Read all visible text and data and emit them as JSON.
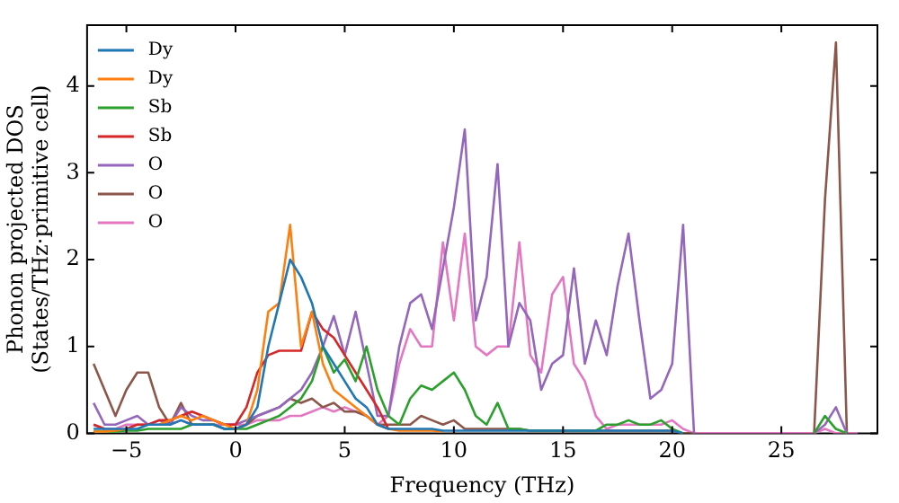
{
  "chart_data": {
    "type": "line",
    "xlabel": "Frequency (THz)",
    "ylabel": "Phonon projected DOS\n(States/THz·primitive cell)",
    "xlim": [
      -6.8,
      29.4
    ],
    "ylim": [
      0,
      4.7
    ],
    "xticks": [
      -5,
      0,
      5,
      10,
      15,
      20,
      25
    ],
    "yticks": [
      0,
      1,
      2,
      3,
      4
    ],
    "legend": "top left",
    "grid": false,
    "marker": "none",
    "line_style": "solid",
    "x": [
      -6.5,
      -6,
      -5.5,
      -5,
      -4.5,
      -4,
      -3.5,
      -3,
      -2.5,
      -2,
      -1.5,
      -1,
      -0.5,
      0,
      0.5,
      1,
      1.5,
      2,
      2.5,
      3,
      3.5,
      4,
      4.5,
      5,
      5.5,
      6,
      6.5,
      7,
      7.5,
      8,
      8.5,
      9,
      9.5,
      10,
      10.5,
      11,
      11.5,
      12,
      12.5,
      13,
      13.5,
      14,
      14.5,
      15,
      15.5,
      16,
      16.5,
      17,
      17.5,
      18,
      18.5,
      19,
      19.5,
      20,
      20.5,
      21,
      21.5,
      22,
      22.5,
      23,
      23.5,
      24,
      24.5,
      25,
      25.5,
      26,
      26.5,
      27,
      27.5,
      28,
      28.5
    ],
    "series": [
      {
        "name": "Dy",
        "color": "#1f77b4",
        "values": [
          0.05,
          0.05,
          0.05,
          0.05,
          0.05,
          0.1,
          0.1,
          0.1,
          0.15,
          0.1,
          0.1,
          0.1,
          0.05,
          0.05,
          0.1,
          0.3,
          1.0,
          1.5,
          2.0,
          1.8,
          1.5,
          1.0,
          0.8,
          0.6,
          0.4,
          0.3,
          0.1,
          0.05,
          0.05,
          0.05,
          0.05,
          0.05,
          0.03,
          0.03,
          0.03,
          0.03,
          0.03,
          0.03,
          0.03,
          0.03,
          0.03,
          0.03,
          0.03,
          0.03,
          0.03,
          0.03,
          0.03,
          0.03,
          0.03,
          0.03,
          0.03,
          0.03,
          0.03,
          0.03,
          0,
          null,
          null,
          null,
          null,
          null,
          null,
          null,
          null,
          null,
          null,
          null,
          null,
          null,
          null,
          null,
          null
        ]
      },
      {
        "name": "Dy",
        "color": "#ff7f0e",
        "values": [
          0.02,
          0.02,
          0.03,
          0.05,
          null,
          null,
          0.1,
          0.15,
          0.2,
          0.15,
          0.2,
          0.15,
          0.1,
          0.05,
          0.1,
          0.5,
          1.4,
          1.5,
          2.4,
          1.0,
          1.4,
          0.8,
          0.5,
          0.4,
          0.3,
          0.2,
          0.1,
          0.05,
          0.03,
          0.03,
          0.03,
          0.03,
          0.02,
          null,
          null,
          null,
          null,
          null,
          null,
          null,
          null,
          null,
          null,
          null,
          null,
          null,
          null,
          null,
          null,
          null,
          null,
          null,
          null,
          null,
          null,
          null,
          null,
          null,
          null,
          null,
          null,
          null,
          null,
          null,
          null,
          null,
          null,
          null,
          null,
          null,
          null
        ]
      },
      {
        "name": "Sb",
        "color": "#2ca02c",
        "values": [
          0.02,
          0.02,
          0.02,
          0.03,
          0.03,
          0.05,
          0.05,
          0.05,
          0.05,
          0.1,
          0.1,
          0.1,
          0.05,
          0.05,
          0.05,
          0.1,
          0.15,
          0.2,
          0.3,
          0.4,
          0.6,
          1.0,
          0.7,
          0.85,
          0.6,
          1.0,
          0.5,
          0.2,
          0.1,
          0.4,
          0.55,
          0.5,
          0.6,
          0.7,
          0.5,
          0.2,
          0.1,
          0.35,
          0.05,
          0.05,
          0.03,
          0.03,
          0.03,
          0.03,
          0.03,
          0.03,
          0.03,
          0.1,
          0.1,
          0.15,
          0.1,
          0.1,
          0.15,
          0.05,
          0,
          null,
          null,
          null,
          null,
          null,
          null,
          null,
          null,
          null,
          null,
          null,
          0,
          0.2,
          0.05,
          0,
          null
        ]
      },
      {
        "name": "Sb",
        "color": "#d62728",
        "values": [
          0.1,
          0.05,
          null,
          0.05,
          0.1,
          0.1,
          0.15,
          0.15,
          0.2,
          0.25,
          0.2,
          0.15,
          0.1,
          0.1,
          0.3,
          0.7,
          0.9,
          0.95,
          0.95,
          0.95,
          1.4,
          1.2,
          1.1,
          0.9,
          0.7,
          0.5,
          0.3,
          0.05,
          null,
          null,
          null,
          null,
          null,
          null,
          null,
          null,
          null,
          null,
          null,
          null,
          null,
          null,
          null,
          null,
          null,
          null,
          null,
          null,
          null,
          null,
          null,
          null,
          null,
          null,
          null,
          null,
          null,
          null,
          null,
          null,
          null,
          null,
          null,
          null,
          null,
          null,
          null,
          null,
          null,
          null,
          null
        ]
      },
      {
        "name": "O",
        "color": "#9467bd",
        "values": [
          0.35,
          0.1,
          0.1,
          0.15,
          0.2,
          0.1,
          0.15,
          0.1,
          0.3,
          0.2,
          0.15,
          0.15,
          0.1,
          0.1,
          0.15,
          0.2,
          0.25,
          0.3,
          0.4,
          0.5,
          0.7,
          1.0,
          1.35,
          0.9,
          1.4,
          0.8,
          0.2,
          0.2,
          1.0,
          1.5,
          1.6,
          1.2,
          1.9,
          2.6,
          3.5,
          1.3,
          1.8,
          3.1,
          1.0,
          1.5,
          1.3,
          0.5,
          0.8,
          0.9,
          1.9,
          0.8,
          1.3,
          0.9,
          1.7,
          2.3,
          1.3,
          0.4,
          0.5,
          0.8,
          2.4,
          0,
          null,
          null,
          null,
          null,
          null,
          null,
          null,
          null,
          null,
          null,
          0,
          0.1,
          0.3,
          0,
          null
        ]
      },
      {
        "name": "O",
        "color": "#8c564b",
        "values": [
          0.8,
          0.5,
          0.2,
          0.5,
          0.7,
          0.7,
          0.3,
          0.1,
          0.35,
          0.1,
          0.1,
          0.1,
          0.05,
          0.05,
          0.1,
          0.2,
          0.25,
          0.3,
          0.4,
          0.35,
          0.4,
          0.3,
          0.35,
          0.25,
          0.25,
          0.2,
          0.1,
          0.1,
          0.1,
          0.1,
          0.2,
          0.15,
          0.1,
          0.15,
          0.05,
          0.05,
          0.05,
          0.05,
          0.05,
          0.05,
          0.03,
          0.03,
          0.03,
          0.03,
          0.03,
          0.03,
          0.03,
          0.03,
          0.03,
          0.03,
          0.03,
          0.03,
          0.03,
          0.03,
          0,
          0,
          null,
          null,
          null,
          null,
          null,
          null,
          null,
          null,
          null,
          null,
          0,
          2.7,
          4.5,
          0,
          null
        ]
      },
      {
        "name": "O",
        "color": "#e377c2",
        "values": [
          0.1,
          0.05,
          0.05,
          0.1,
          0.1,
          0.1,
          0.1,
          0.1,
          0.15,
          0.1,
          0.1,
          0.1,
          0.1,
          0.1,
          0.1,
          0.15,
          0.15,
          0.15,
          0.2,
          0.2,
          0.25,
          0.3,
          0.25,
          0.3,
          0.25,
          0.2,
          0.1,
          0.2,
          0.8,
          1.2,
          1.0,
          1.0,
          2.2,
          1.3,
          2.3,
          1.0,
          0.9,
          1.0,
          1.0,
          2.2,
          0.9,
          0.7,
          1.6,
          1.8,
          0.8,
          0.6,
          0.2,
          0.05,
          0.1,
          0.1,
          0.1,
          0.1,
          0.1,
          0.15,
          0.05,
          0,
          0,
          0,
          0,
          0,
          0,
          0,
          0,
          0,
          0,
          0,
          0,
          0.05,
          0,
          0,
          0
        ]
      }
    ]
  }
}
